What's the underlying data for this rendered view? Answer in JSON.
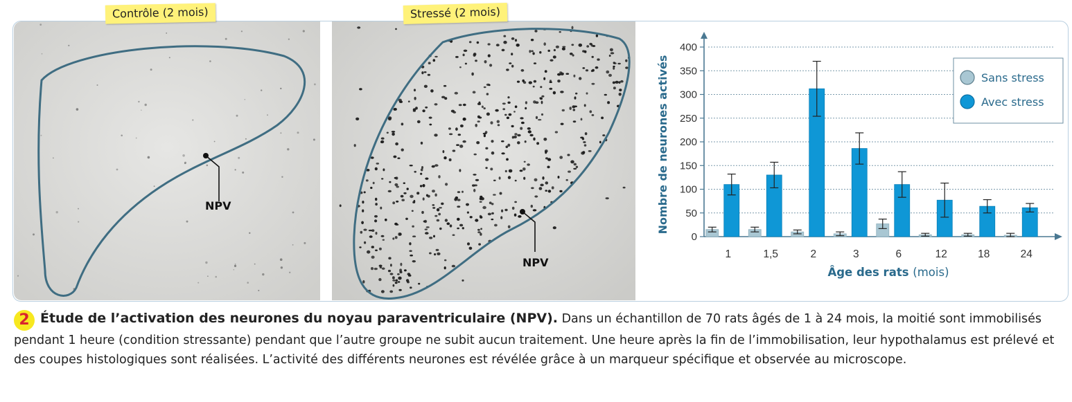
{
  "photos": {
    "control_label": "Contrôle (2 mois)",
    "stress_label": "Stressé (2 mois)",
    "npv_label": "NPV"
  },
  "caption": {
    "number": "2",
    "title": "Étude de l’activation des neurones du noyau paraventriculaire (NPV).",
    "body": "Dans un échantillon de 70 rats âgés de 1 à 24 mois, la moitié sont immobilisés pendant 1 heure (condition stressante) pendant que l’autre groupe ne subit aucun traitement. Une heure après la fin de l’immobilisation, leur hypothalamus est prélevé et des coupes histologiques sont réalisées. L’activité des différents neurones est révélée grâce à un marqueur spécifique et observée au microscope."
  },
  "chart_data": {
    "type": "bar",
    "categories": [
      "1",
      "1,5",
      "2",
      "3",
      "6",
      "12",
      "18",
      "24"
    ],
    "series": [
      {
        "name": "Sans stress",
        "color": "#a9c7d3",
        "values": [
          15,
          15,
          10,
          6,
          27,
          4,
          4,
          3
        ],
        "errors": [
          5,
          5,
          4,
          4,
          10,
          3,
          3,
          4
        ]
      },
      {
        "name": "Avec stress",
        "color": "#0f97d6",
        "values": [
          110,
          130,
          312,
          186,
          110,
          77,
          64,
          61
        ],
        "errors": [
          22,
          27,
          58,
          33,
          27,
          36,
          14,
          9
        ]
      }
    ],
    "xlabel": "Âge des rats",
    "xlabel_unit": "(mois)",
    "ylabel": "Nombre de neurones activés",
    "ylim": [
      0,
      400
    ],
    "yticks": [
      0,
      50,
      100,
      150,
      200,
      250,
      300,
      350,
      400
    ],
    "grid": true,
    "legend_position": "top-right"
  }
}
